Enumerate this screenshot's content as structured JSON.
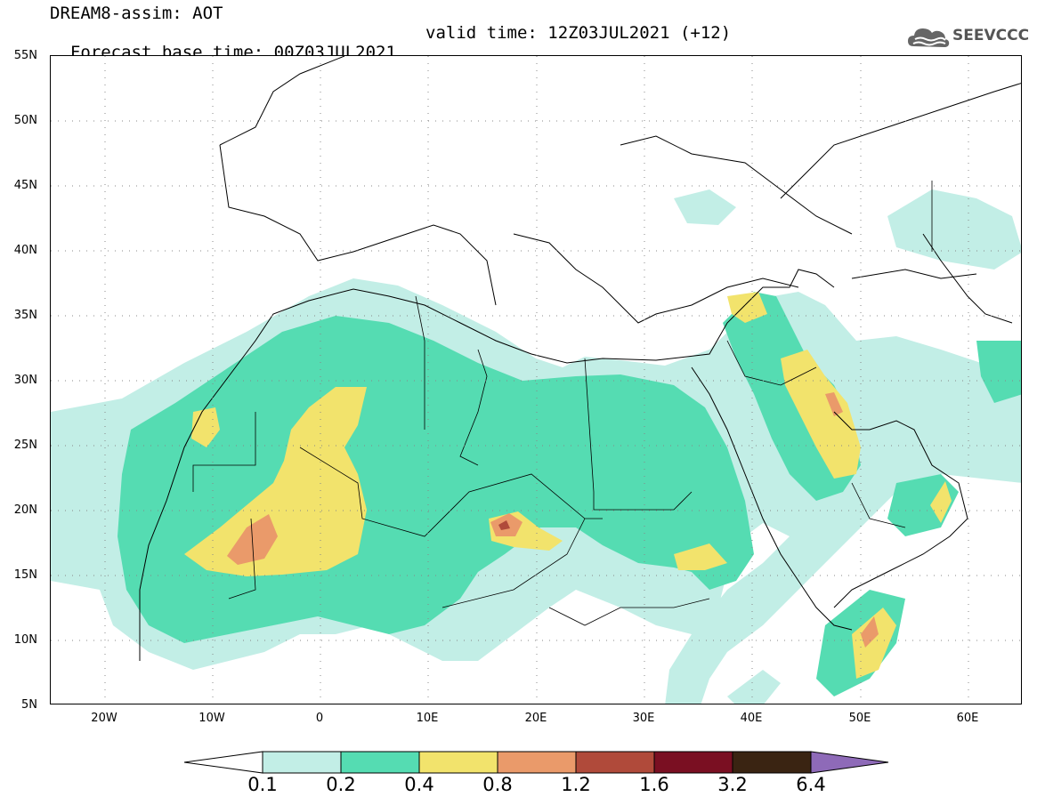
{
  "header": {
    "title": "DREAM8-assim: AOT",
    "base_time": "Forecast base time: 00Z03JUL2021",
    "valid_time": "valid time: 12Z03JUL2021 (+12)"
  },
  "logo": {
    "text": "SEEVCCC",
    "icon": "cloud-logo-icon",
    "color": "#555555"
  },
  "map": {
    "lon_range": [
      -25,
      65
    ],
    "lat_range": [
      5,
      55
    ],
    "lat_labels": [
      "55N",
      "50N",
      "45N",
      "40N",
      "35N",
      "30N",
      "25N",
      "20N",
      "15N",
      "10N",
      "5N"
    ],
    "lon_labels": [
      "20W",
      "10W",
      "0",
      "10E",
      "20E",
      "30E",
      "40E",
      "50E",
      "60E"
    ],
    "grid": "dotted"
  },
  "legend": {
    "colors": [
      "#c2eee6",
      "#55dcb2",
      "#f2e36c",
      "#ea9a6a",
      "#b04a3a",
      "#7a0f22",
      "#3a2412",
      "#8e6ab8"
    ],
    "labels": [
      "0.1",
      "0.2",
      "0.4",
      "0.8",
      "1.2",
      "1.6",
      "3.2",
      "6.4"
    ]
  }
}
